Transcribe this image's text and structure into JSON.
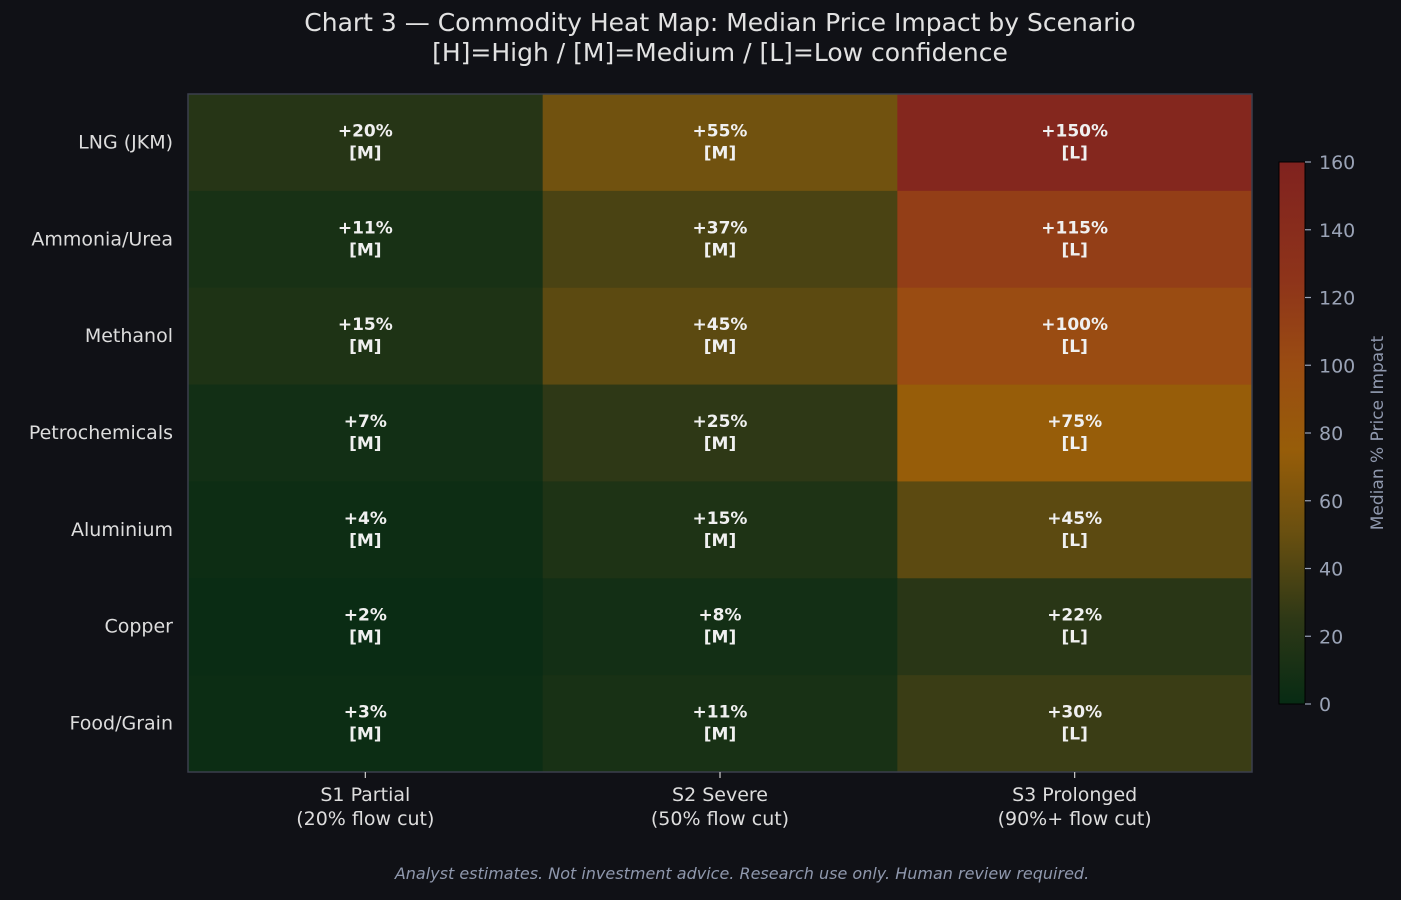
{
  "chart_data": {
    "type": "heatmap",
    "title": "Chart 3 — Commodity Heat Map: Median Price Impact by Scenario",
    "subtitle": "[H]=High / [M]=Medium / [L]=Low confidence",
    "rows": [
      "LNG (JKM)",
      "Ammonia/Urea",
      "Methanol",
      "Petrochemicals",
      "Aluminium",
      "Copper",
      "Food/Grain"
    ],
    "columns": [
      {
        "line1": "S1 Partial",
        "line2": "(20% flow cut)"
      },
      {
        "line1": "S2 Severe",
        "line2": "(50% flow cut)"
      },
      {
        "line1": "S3 Prolonged",
        "line2": "(90%+ flow cut)"
      }
    ],
    "values": [
      [
        20,
        55,
        150
      ],
      [
        11,
        37,
        115
      ],
      [
        15,
        45,
        100
      ],
      [
        7,
        25,
        75
      ],
      [
        4,
        15,
        45
      ],
      [
        2,
        8,
        22
      ],
      [
        3,
        11,
        30
      ]
    ],
    "cell_labels": [
      [
        "+20%",
        "+55%",
        "+150%"
      ],
      [
        "+11%",
        "+37%",
        "+115%"
      ],
      [
        "+15%",
        "+45%",
        "+100%"
      ],
      [
        "+7%",
        "+25%",
        "+75%"
      ],
      [
        "+4%",
        "+15%",
        "+45%"
      ],
      [
        "+2%",
        "+8%",
        "+22%"
      ],
      [
        "+3%",
        "+11%",
        "+30%"
      ]
    ],
    "confidence": [
      [
        "[M]",
        "[M]",
        "[L]"
      ],
      [
        "[M]",
        "[M]",
        "[L]"
      ],
      [
        "[M]",
        "[M]",
        "[L]"
      ],
      [
        "[M]",
        "[M]",
        "[L]"
      ],
      [
        "[M]",
        "[M]",
        "[L]"
      ],
      [
        "[M]",
        "[M]",
        "[L]"
      ],
      [
        "[M]",
        "[M]",
        "[L]"
      ]
    ],
    "colorbar": {
      "label": "Median % Price Impact",
      "range": [
        0,
        160
      ],
      "ticks": [
        0,
        20,
        40,
        60,
        80,
        100,
        120,
        140,
        160
      ],
      "colormap": [
        {
          "v": 0,
          "color": "#072b14"
        },
        {
          "v": 25,
          "color": "#2e3816"
        },
        {
          "v": 50,
          "color": "#684f10"
        },
        {
          "v": 75,
          "color": "#975d09"
        },
        {
          "v": 100,
          "color": "#9a4c12"
        },
        {
          "v": 125,
          "color": "#8e341a"
        },
        {
          "v": 160,
          "color": "#80221f"
        }
      ]
    },
    "grid": false
  },
  "footnote": "Analyst estimates. Not investment advice. Research use only. Human review required."
}
